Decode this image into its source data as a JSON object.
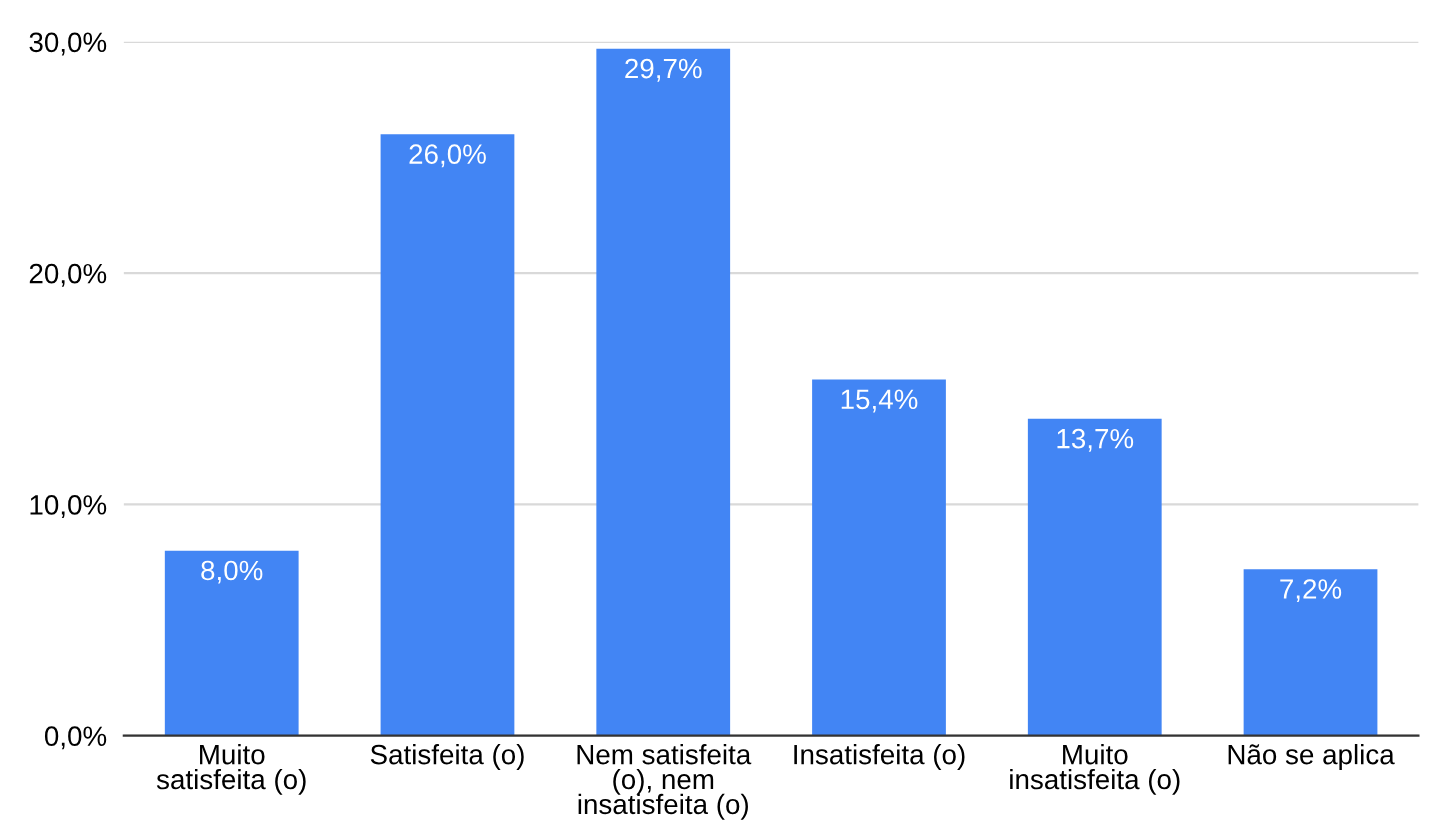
{
  "chart_data": {
    "type": "bar",
    "categories": [
      "Muito\nsatisfeita (o)",
      "Satisfeita (o)",
      "Nem satisfeita\n(o), nem\ninsatisfeita (o)",
      "Insatisfeita (o)",
      "Muito\ninsatisfeita (o)",
      "Não se aplica"
    ],
    "values": [
      8.0,
      26.0,
      29.7,
      15.4,
      13.7,
      7.2
    ],
    "value_labels": [
      "8,0%",
      "26,0%",
      "29,7%",
      "15,4%",
      "13,7%",
      "7,2%"
    ],
    "color": "#4285f4",
    "ylim": [
      0,
      30
    ],
    "yticks": [
      {
        "value": 0,
        "label": "0,0%"
      },
      {
        "value": 10,
        "label": "10,0%"
      },
      {
        "value": 20,
        "label": "20,0%"
      },
      {
        "value": 30,
        "label": "30,0%"
      }
    ],
    "grid": "y"
  }
}
